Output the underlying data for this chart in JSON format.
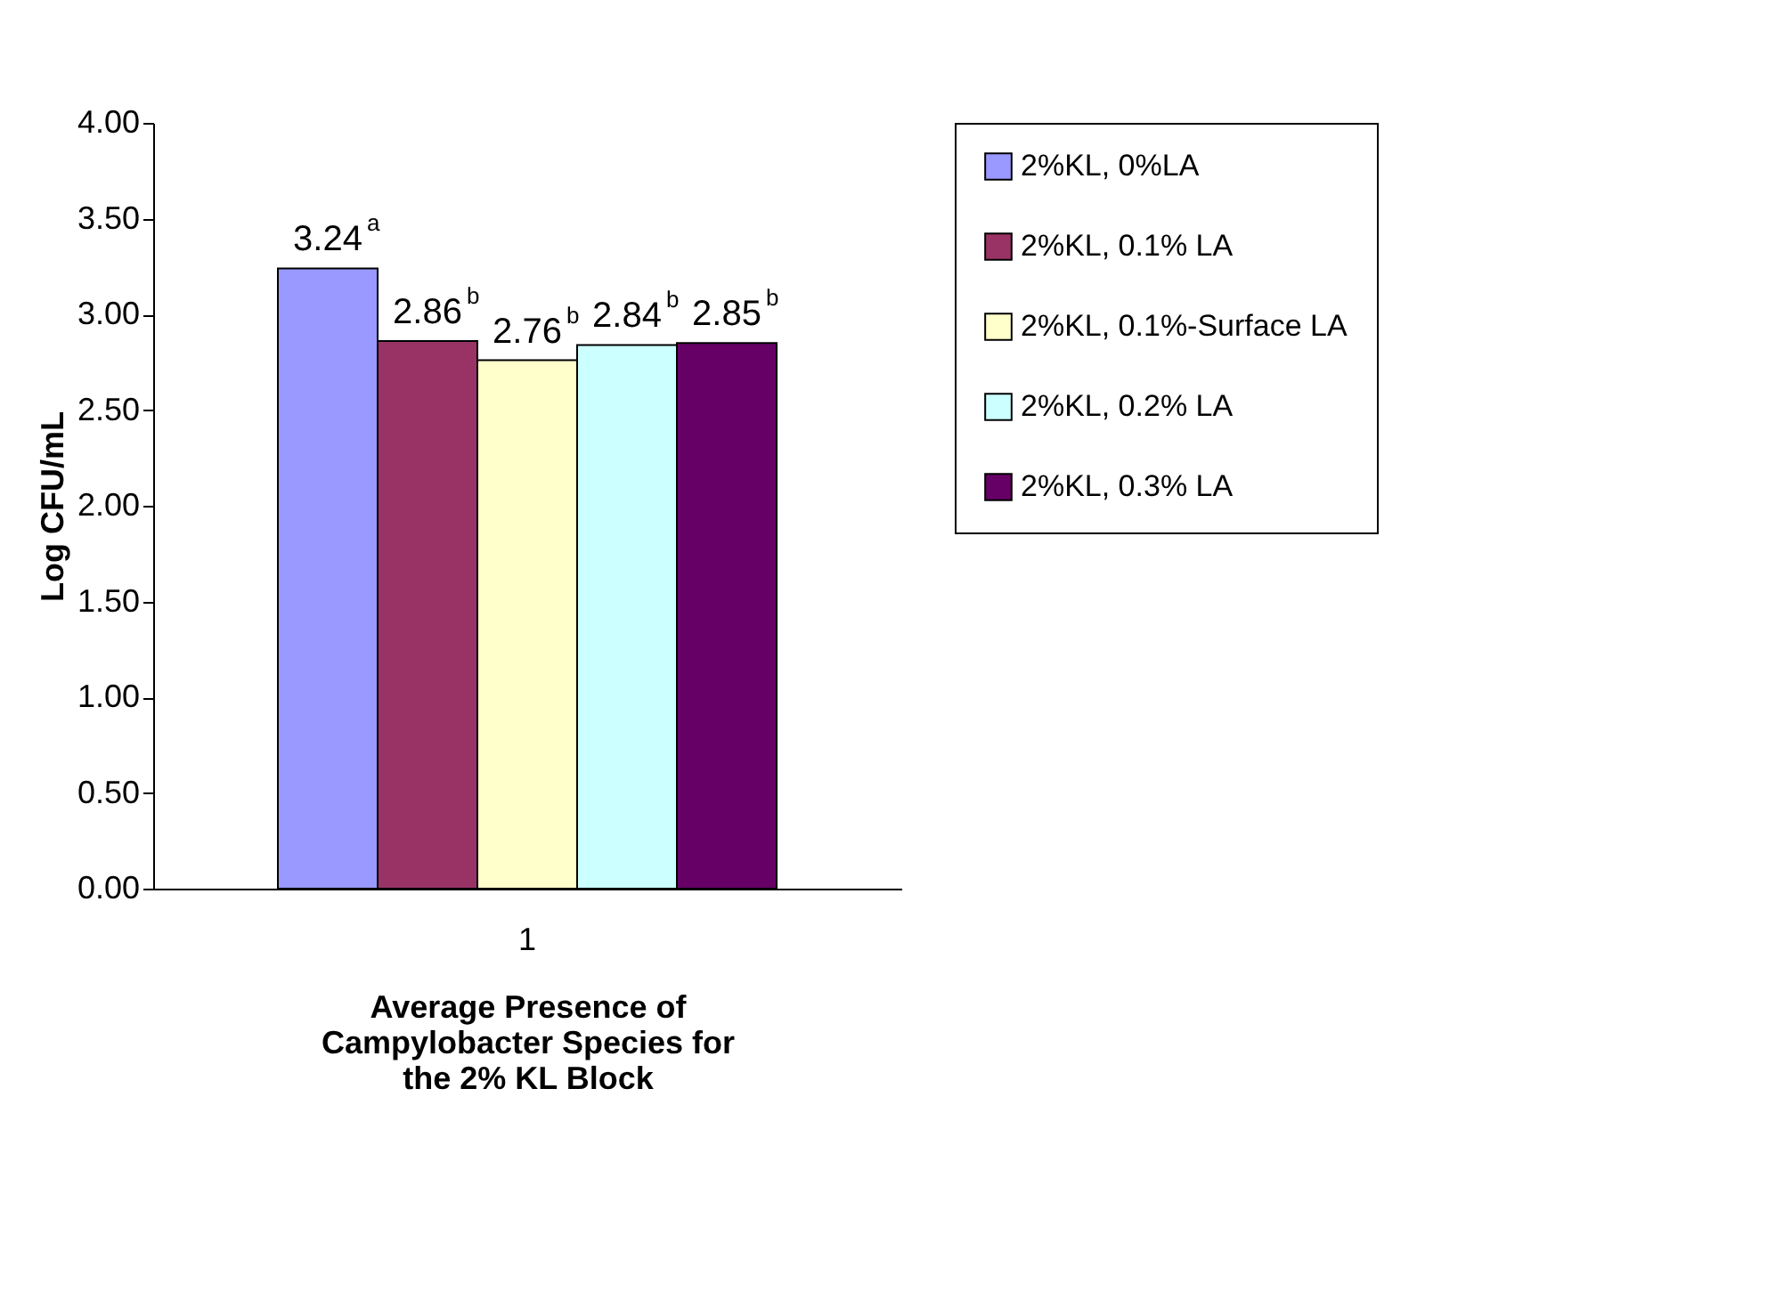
{
  "chart_data": {
    "type": "bar",
    "categories": [
      "1"
    ],
    "xlabel": "Average Presence of Campylobacter Species for the 2% KL Block",
    "ylabel": "Log CFU/mL",
    "ylim": [
      0,
      4
    ],
    "yticks": [
      {
        "value": 0,
        "label": "0.00"
      },
      {
        "value": 0.5,
        "label": "0.50"
      },
      {
        "value": 1,
        "label": "1.00"
      },
      {
        "value": 1.5,
        "label": "1.50"
      },
      {
        "value": 2,
        "label": "2.00"
      },
      {
        "value": 2.5,
        "label": "2.50"
      },
      {
        "value": 3,
        "label": "3.00"
      },
      {
        "value": 3.5,
        "label": "3.50"
      },
      {
        "value": 4,
        "label": "4.00"
      }
    ],
    "legend": "right",
    "series": [
      {
        "name": "2%KL, 0%LA",
        "color": "#9999ff",
        "values": [
          3.24
        ],
        "value_labels": [
          "3.24$^{a}$"
        ]
      },
      {
        "name": "2%KL, 0.1% LA",
        "color": "#993366",
        "values": [
          2.86
        ],
        "value_labels": [
          "2.86$^{b}$"
        ]
      },
      {
        "name": "2%KL, 0.1%-Surface LA",
        "color": "#ffffcc",
        "values": [
          2.76
        ],
        "value_labels": [
          "2.76$^{b}$"
        ]
      },
      {
        "name": "2%KL, 0.2% LA",
        "color": "#ccffff",
        "values": [
          2.84
        ],
        "value_labels": [
          "2.84$^{b}$"
        ]
      },
      {
        "name": "2%KL, 0.3% LA",
        "color": "#660066",
        "values": [
          2.85
        ],
        "value_labels": [
          "2.85$^{b}$"
        ]
      }
    ]
  }
}
